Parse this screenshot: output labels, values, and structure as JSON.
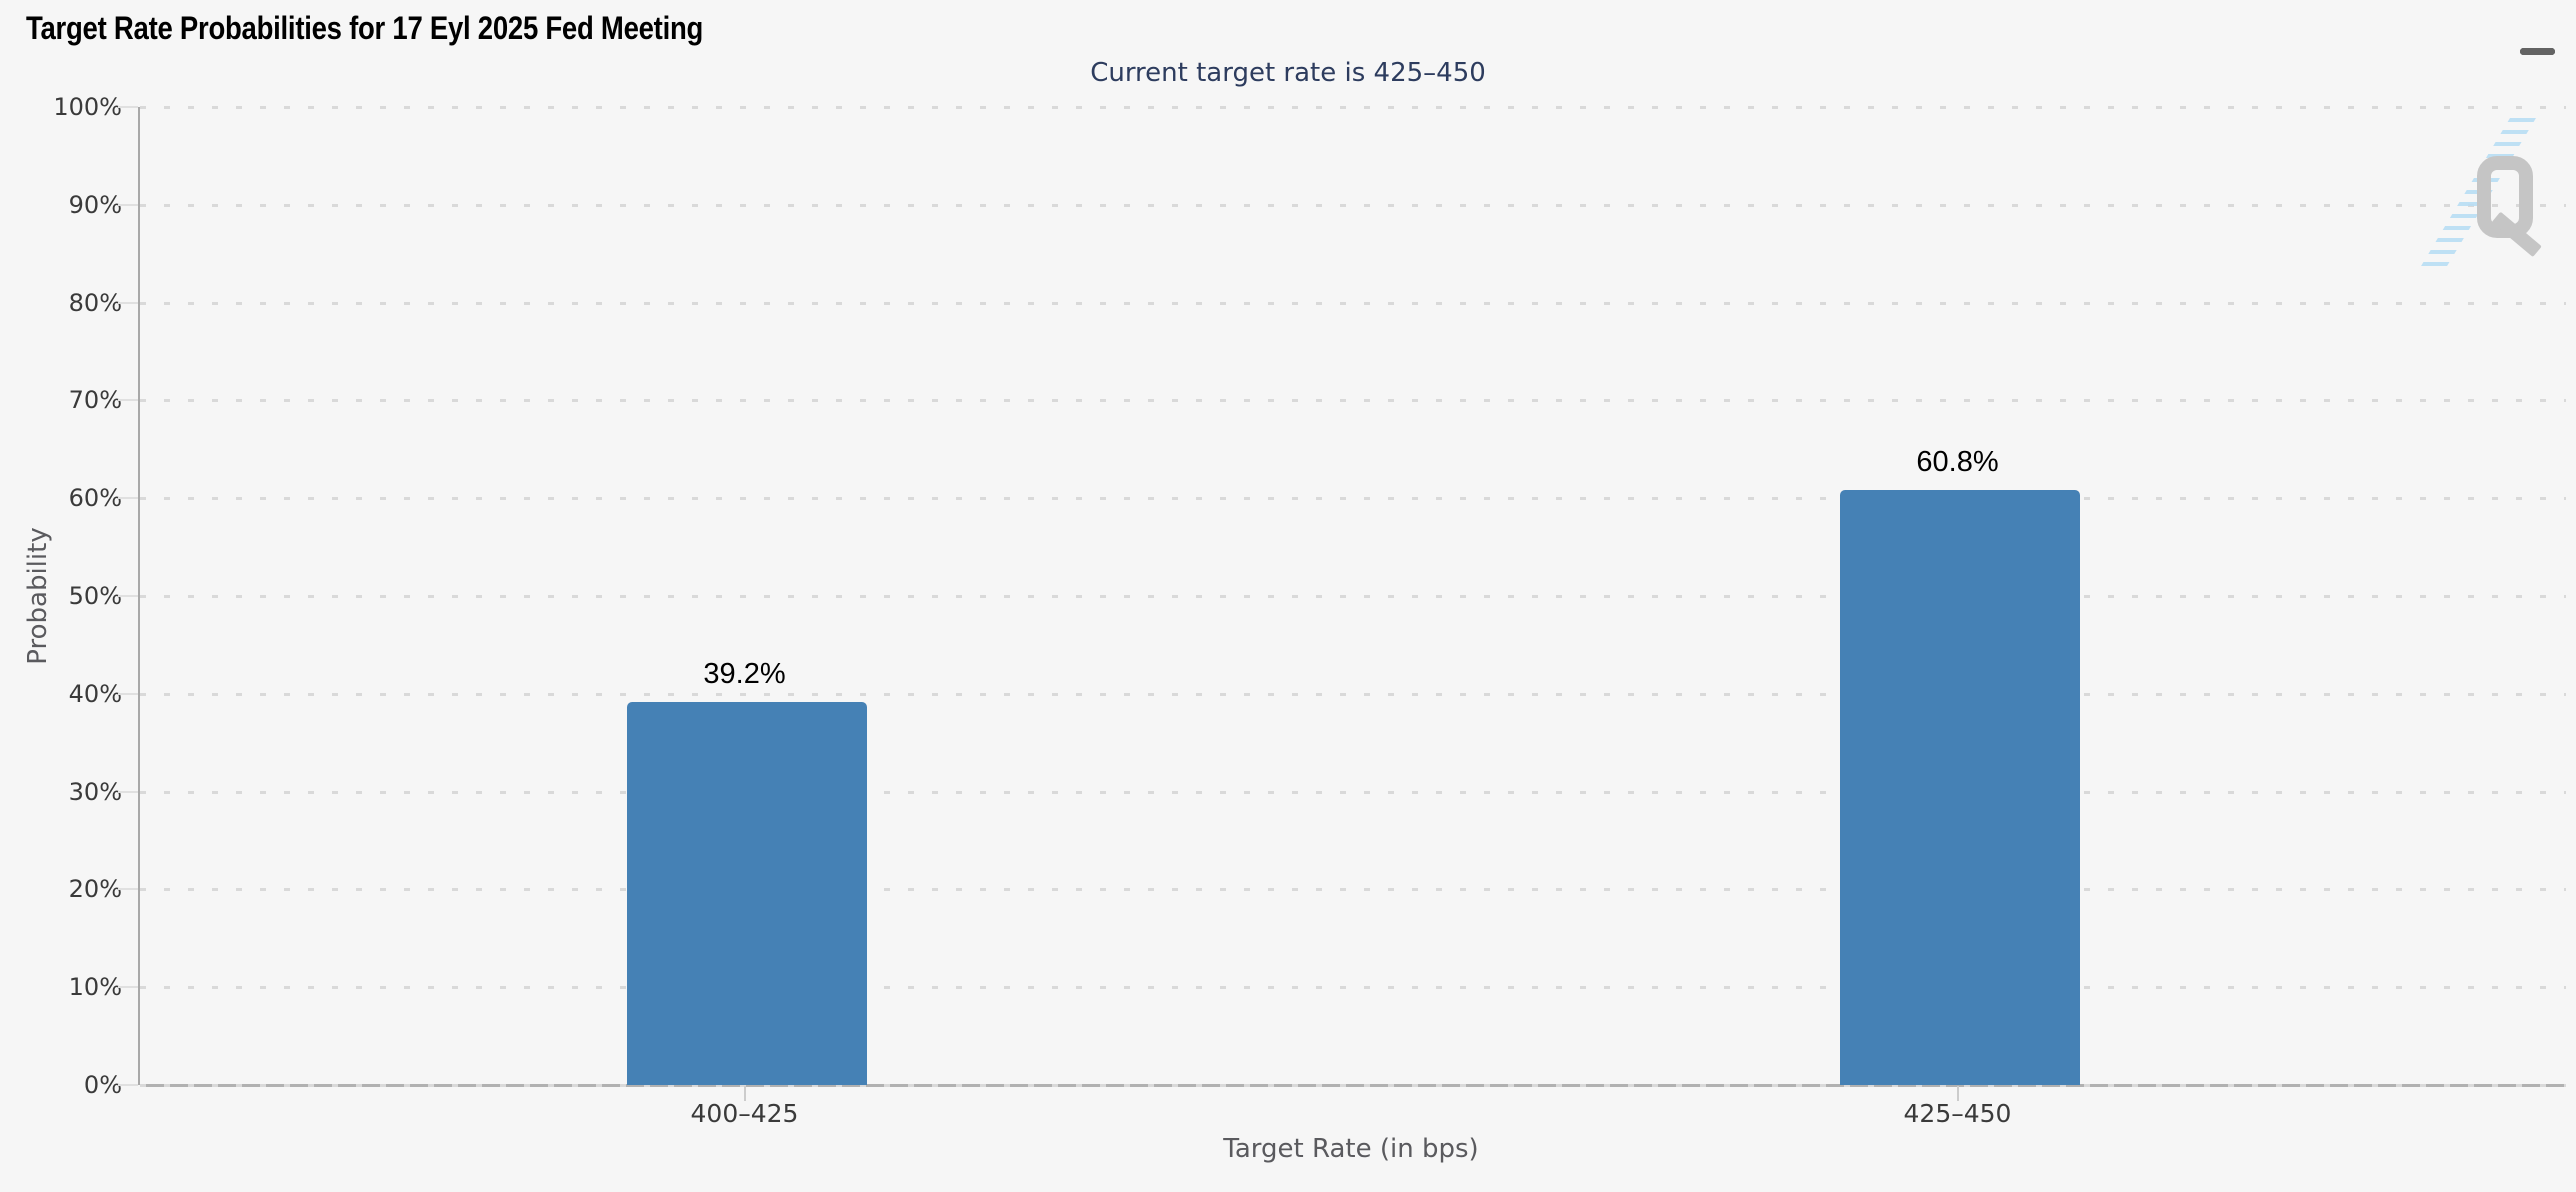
{
  "header": {
    "menu_icon": "hamburger-menu-icon"
  },
  "watermark": {
    "letter": "Q",
    "style": "gray Q logo with light-blue diagonal hatch stripes"
  },
  "colors": {
    "background": "#f6f6f6",
    "bar": "#4581b5",
    "subtitle_text": "#2d3c5e",
    "axis_text": "#3a3a3a",
    "axis_title_text": "#5a5a5e",
    "menu_icon": "#636363"
  },
  "chart_data": {
    "type": "bar",
    "title": "Target Rate Probabilities for 17 Eyl 2025 Fed Meeting",
    "subtitle": "Current target rate is 425–450",
    "categories": [
      "400–425",
      "425–450"
    ],
    "values": [
      39.2,
      60.8
    ],
    "data_labels": [
      "39.2%",
      "60.8%"
    ],
    "xlabel": "Target Rate (in bps)",
    "ylabel": "Probability",
    "ylim": [
      0,
      100
    ],
    "ytick_step": 10,
    "ytick_labels": [
      "0%",
      "10%",
      "20%",
      "30%",
      "40%",
      "50%",
      "60%",
      "70%",
      "80%",
      "90%",
      "100%"
    ],
    "grid": "dotted-horizontal",
    "legend": "none",
    "bar_color": "#4581b5"
  }
}
